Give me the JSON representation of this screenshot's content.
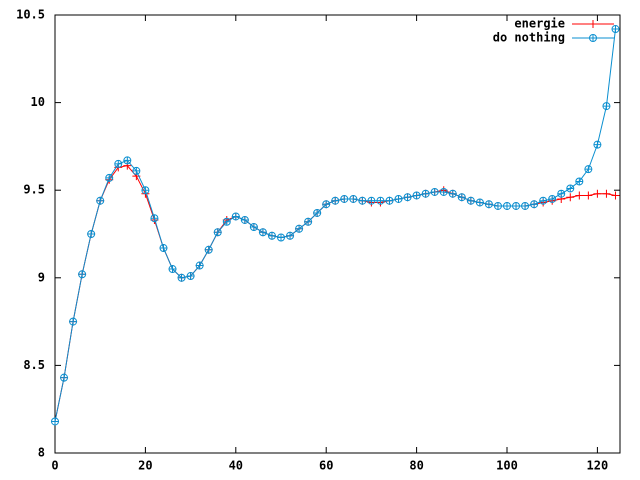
{
  "chart_data": {
    "type": "line",
    "x": [
      0,
      2,
      4,
      6,
      8,
      10,
      12,
      14,
      16,
      18,
      20,
      22,
      24,
      26,
      28,
      30,
      32,
      34,
      36,
      38,
      40,
      42,
      44,
      46,
      48,
      50,
      52,
      54,
      56,
      58,
      60,
      62,
      64,
      66,
      68,
      70,
      72,
      74,
      76,
      78,
      80,
      82,
      84,
      86,
      88,
      90,
      92,
      94,
      96,
      98,
      100,
      102,
      104,
      106,
      108,
      110,
      112,
      114,
      116,
      118,
      120,
      122,
      124
    ],
    "series": [
      {
        "name": "energie",
        "color": "#ff0000",
        "marker": "plus",
        "values": [
          8.18,
          8.43,
          8.75,
          9.02,
          9.25,
          9.44,
          9.56,
          9.63,
          9.64,
          9.58,
          9.48,
          9.33,
          9.17,
          9.05,
          9.0,
          9.01,
          9.07,
          9.16,
          9.26,
          9.33,
          9.35,
          9.33,
          9.29,
          9.26,
          9.24,
          9.23,
          9.24,
          9.28,
          9.32,
          9.37,
          9.42,
          9.44,
          9.45,
          9.45,
          9.44,
          9.43,
          9.43,
          9.44,
          9.45,
          9.46,
          9.47,
          9.48,
          9.49,
          9.5,
          9.48,
          9.46,
          9.44,
          9.43,
          9.42,
          9.41,
          9.41,
          9.41,
          9.41,
          9.42,
          9.43,
          9.44,
          9.45,
          9.46,
          9.47,
          9.47,
          9.48,
          9.48,
          9.47
        ]
      },
      {
        "name": "do nothing",
        "color": "#0a8fd0",
        "marker": "circle",
        "values": [
          8.18,
          8.43,
          8.75,
          9.02,
          9.25,
          9.44,
          9.57,
          9.65,
          9.67,
          9.61,
          9.5,
          9.34,
          9.17,
          9.05,
          9.0,
          9.01,
          9.07,
          9.16,
          9.26,
          9.32,
          9.35,
          9.33,
          9.29,
          9.26,
          9.24,
          9.23,
          9.24,
          9.28,
          9.32,
          9.37,
          9.42,
          9.44,
          9.45,
          9.45,
          9.44,
          9.44,
          9.44,
          9.44,
          9.45,
          9.46,
          9.47,
          9.48,
          9.49,
          9.49,
          9.48,
          9.46,
          9.44,
          9.43,
          9.42,
          9.41,
          9.41,
          9.41,
          9.41,
          9.42,
          9.44,
          9.45,
          9.48,
          9.51,
          9.55,
          9.62,
          9.76,
          9.98,
          10.42
        ]
      }
    ],
    "xlim": [
      0,
      125
    ],
    "xticks": [
      0,
      20,
      40,
      60,
      80,
      100,
      120
    ],
    "ylim": [
      8,
      10.5
    ],
    "yticks": [
      8,
      8.5,
      9,
      9.5,
      10,
      10.5
    ],
    "legend": "top-right"
  }
}
